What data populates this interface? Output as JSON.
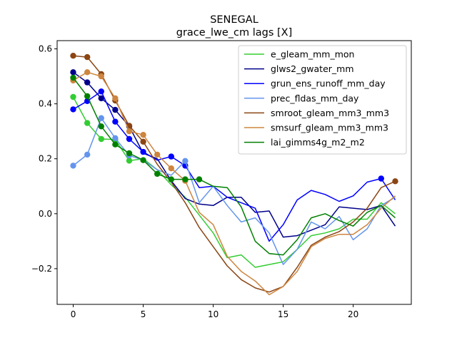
{
  "chart_data": {
    "type": "line",
    "title": "SENEGAL",
    "subtitle": "grace_lwe_cm lags [X]",
    "xlabel": "",
    "ylabel": "",
    "xlim": [
      -1.15,
      24.15
    ],
    "ylim": [
      -0.33,
      0.63
    ],
    "xticks": [
      0,
      5,
      10,
      15,
      20
    ],
    "yticks": [
      -0.2,
      0.0,
      0.2,
      0.4,
      0.6
    ],
    "ytick_labels": [
      "−0.2",
      "0.0",
      "0.2",
      "0.4",
      "0.6"
    ],
    "grid": false,
    "legend_position": "top-right",
    "x": [
      0,
      1,
      2,
      3,
      4,
      5,
      6,
      7,
      8,
      9,
      10,
      11,
      12,
      13,
      14,
      15,
      16,
      17,
      18,
      19,
      20,
      21,
      22,
      23
    ],
    "series": [
      {
        "name": "e_gleam_mm_mon",
        "color": "#32cd32",
        "values": [
          0.425,
          0.33,
          0.272,
          0.27,
          0.193,
          0.2,
          0.16,
          0.105,
          0.06,
          -0.005,
          -0.07,
          -0.16,
          -0.15,
          -0.195,
          -0.185,
          -0.175,
          -0.13,
          -0.08,
          -0.07,
          -0.055,
          -0.02,
          -0.02,
          0.04,
          0.0
        ],
        "marker_indices": [
          0,
          1,
          2,
          3,
          4
        ]
      },
      {
        "name": "glws2_gwater_mm",
        "color": "#00008b",
        "values": [
          0.515,
          0.478,
          0.42,
          0.378,
          0.318,
          0.22,
          0.2,
          0.12,
          0.055,
          0.035,
          0.03,
          0.06,
          0.06,
          0.005,
          0.01,
          -0.085,
          -0.08,
          -0.06,
          -0.04,
          0.025,
          0.02,
          0.015,
          0.03,
          -0.045
        ],
        "marker_indices": [
          0,
          1,
          2,
          3,
          4
        ]
      },
      {
        "name": "grun_ens_runoff_mm_day",
        "color": "#0000ff",
        "values": [
          0.38,
          0.41,
          0.445,
          0.335,
          0.272,
          0.225,
          0.195,
          0.208,
          0.175,
          0.095,
          0.1,
          0.06,
          0.04,
          0.02,
          -0.1,
          -0.04,
          0.05,
          0.085,
          0.07,
          0.045,
          0.065,
          0.115,
          0.128,
          0.05
        ],
        "marker_indices": [
          0,
          1,
          2,
          3,
          4,
          5,
          7,
          8,
          22
        ]
      },
      {
        "name": "prec_fldas_mm_day",
        "color": "#6495ed",
        "values": [
          0.175,
          0.215,
          0.348,
          0.275,
          0.212,
          0.195,
          0.16,
          0.14,
          0.192,
          0.04,
          0.1,
          0.03,
          -0.03,
          -0.015,
          -0.07,
          -0.185,
          -0.13,
          -0.03,
          -0.055,
          -0.01,
          -0.095,
          -0.055,
          0.03,
          0.06
        ],
        "marker_indices": [
          0,
          1,
          2,
          3,
          4,
          8
        ]
      },
      {
        "name": "smroot_gleam_mm3_mm3",
        "color": "#8b4513",
        "values": [
          0.575,
          0.57,
          0.508,
          0.412,
          0.32,
          0.262,
          0.18,
          0.115,
          0.04,
          -0.05,
          -0.12,
          -0.19,
          -0.24,
          -0.27,
          -0.285,
          -0.265,
          -0.195,
          -0.115,
          -0.085,
          -0.065,
          -0.03,
          0.02,
          0.095,
          0.118
        ],
        "marker_indices": [
          0,
          1,
          2,
          3,
          4,
          5,
          23
        ]
      },
      {
        "name": "smsurf_gleam_mm3_mm3",
        "color": "#cd853f",
        "values": [
          0.485,
          0.515,
          0.5,
          0.42,
          0.3,
          0.287,
          0.215,
          0.165,
          0.12,
          0.005,
          -0.04,
          -0.155,
          -0.21,
          -0.245,
          -0.295,
          -0.265,
          -0.21,
          -0.12,
          -0.09,
          -0.075,
          -0.075,
          -0.04,
          0.02,
          0.065
        ],
        "marker_indices": [
          0,
          1,
          2,
          3,
          4,
          5,
          6,
          7,
          8
        ]
      },
      {
        "name": "lai_gimms4g_m2_m2",
        "color": "#008000",
        "values": [
          0.495,
          0.428,
          0.318,
          0.252,
          0.22,
          0.195,
          0.145,
          0.125,
          0.125,
          0.125,
          0.1,
          0.095,
          0.025,
          -0.1,
          -0.145,
          -0.15,
          -0.095,
          -0.015,
          0.0,
          -0.025,
          -0.045,
          0.005,
          0.03,
          -0.015
        ],
        "marker_indices": [
          0,
          1,
          2,
          3,
          4,
          5,
          6,
          7,
          8,
          9
        ]
      }
    ]
  }
}
